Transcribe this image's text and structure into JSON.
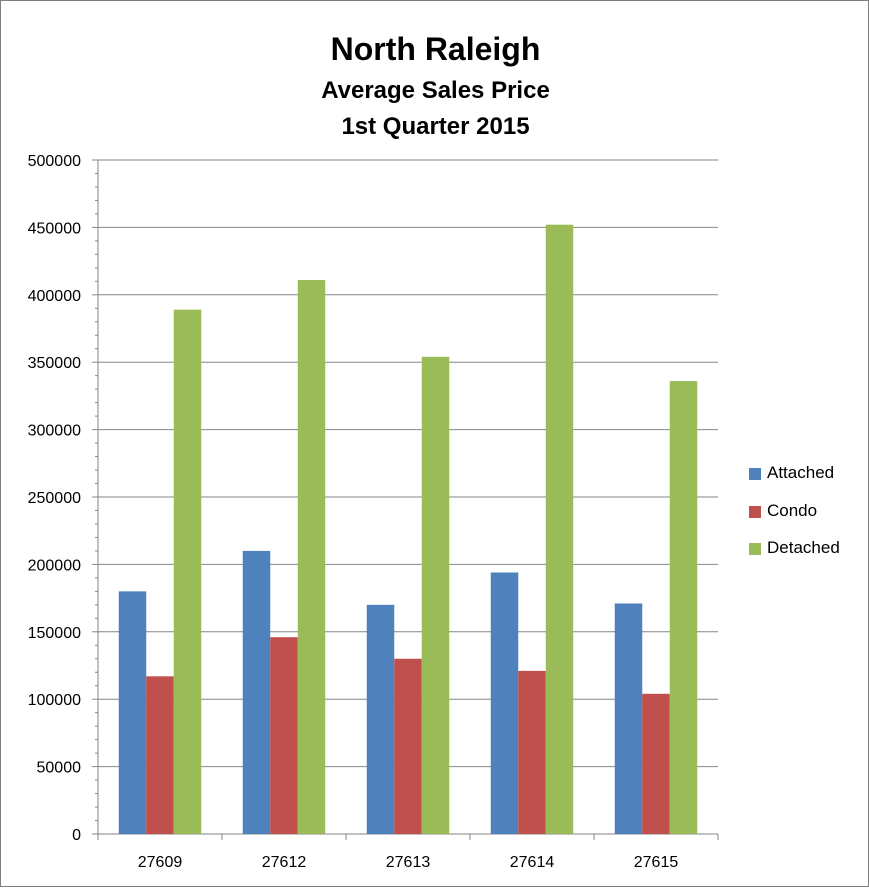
{
  "chart_data": {
    "type": "bar",
    "title": "North Raleigh",
    "subtitle": [
      "Average Sales Price",
      "1st Quarter 2015"
    ],
    "categories": [
      "27609",
      "27612",
      "27613",
      "27614",
      "27615"
    ],
    "series": [
      {
        "name": "Attached",
        "color": "#4f81bd",
        "values": [
          180000,
          210000,
          170000,
          194000,
          171000
        ]
      },
      {
        "name": "Condo",
        "color": "#c0504d",
        "values": [
          117000,
          146000,
          130000,
          121000,
          104000
        ]
      },
      {
        "name": "Detached",
        "color": "#9bbb59",
        "values": [
          389000,
          411000,
          354000,
          452000,
          336000
        ]
      }
    ],
    "ylim": [
      0,
      500000
    ],
    "yticks": [
      "0",
      "50000",
      "100000",
      "150000",
      "200000",
      "250000",
      "300000",
      "350000",
      "400000",
      "450000",
      "500000"
    ],
    "xlabel": "",
    "ylabel": "",
    "grid": true,
    "legend_position": "right"
  }
}
